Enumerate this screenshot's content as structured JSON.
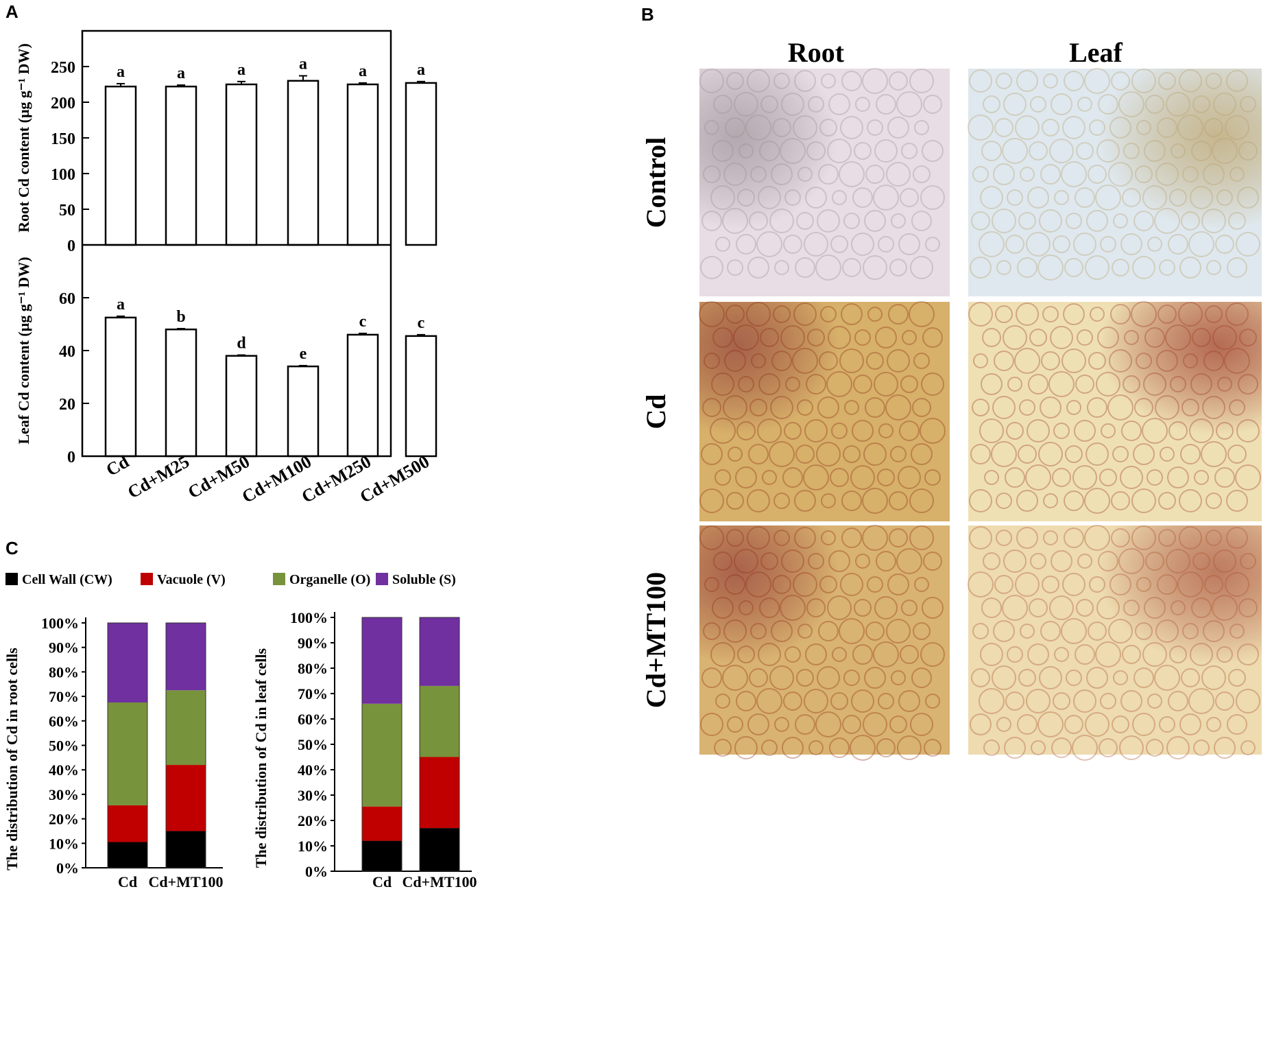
{
  "panels": {
    "A": "A",
    "B": "B",
    "C": "C"
  },
  "chart_data": [
    {
      "id": "root-cd",
      "type": "bar",
      "categories": [
        "Cd",
        "Cd+M25",
        "Cd+M50",
        "Cd+M100",
        "Cd+M250",
        "Cd+M500"
      ],
      "values": [
        222,
        222,
        225,
        230,
        225,
        227
      ],
      "errors": [
        4,
        2,
        4,
        7,
        2,
        2
      ],
      "letters": [
        "a",
        "a",
        "a",
        "a",
        "a",
        "a"
      ],
      "ylabel": "Root Cd content (μg g⁻¹ DW)",
      "ylim": [
        0,
        300
      ],
      "yticks": [
        "0",
        "50",
        "100",
        "150",
        "200",
        "250"
      ]
    },
    {
      "id": "leaf-cd",
      "type": "bar",
      "categories": [
        "Cd",
        "Cd+M25",
        "Cd+M50",
        "Cd+M100",
        "Cd+M250",
        "Cd+M500"
      ],
      "values": [
        52.5,
        48,
        38,
        34,
        46,
        45.5
      ],
      "errors": [
        0.5,
        0.3,
        0.3,
        0.3,
        0.5,
        0.5
      ],
      "letters": [
        "a",
        "b",
        "d",
        "e",
        "c",
        "c"
      ],
      "ylabel": "Leaf Cd content (μg g⁻¹ DW)",
      "ylim": [
        0,
        80
      ],
      "yticks": [
        "0",
        "20",
        "40",
        "60"
      ]
    },
    {
      "id": "root-dist",
      "type": "bar",
      "stacked": true,
      "categories": [
        "Cd",
        "Cd+MT100"
      ],
      "series": [
        {
          "name": "Cell Wall  (CW)",
          "color": "#000000",
          "values": [
            10.5,
            15
          ]
        },
        {
          "name": "Vacuole (V)",
          "color": "#c00000",
          "values": [
            15,
            27
          ]
        },
        {
          "name": "Organelle (O)",
          "color": "#77933c",
          "values": [
            42,
            30.5
          ]
        },
        {
          "name": "Soluble (S)",
          "color": "#7030a0",
          "values": [
            32.5,
            27.5
          ]
        }
      ],
      "ylabel": "The distribution of Cd in root cells",
      "ylim": [
        0,
        100
      ],
      "yticks": [
        "0%",
        "10%",
        "20%",
        "30%",
        "40%",
        "50%",
        "60%",
        "70%",
        "80%",
        "90%",
        "100%"
      ]
    },
    {
      "id": "leaf-dist",
      "type": "bar",
      "stacked": true,
      "categories": [
        "Cd",
        "Cd+MT100"
      ],
      "series": [
        {
          "name": "Cell Wall  (CW)",
          "color": "#000000",
          "values": [
            12,
            17
          ]
        },
        {
          "name": "Vacuole (V)",
          "color": "#c00000",
          "values": [
            13.5,
            28
          ]
        },
        {
          "name": "Organelle (O)",
          "color": "#77933c",
          "values": [
            40.5,
            28
          ]
        },
        {
          "name": "Soluble (S)",
          "color": "#7030a0",
          "values": [
            34,
            27
          ]
        }
      ],
      "ylabel": "The distribution of Cd in leaf cells",
      "ylim": [
        0,
        100
      ],
      "yticks": [
        "0%",
        "10%",
        "20%",
        "30%",
        "40%",
        "50%",
        "60%",
        "70%",
        "80%",
        "90%",
        "100%"
      ]
    }
  ],
  "legend": [
    {
      "name": "Cell Wall  (CW)",
      "color": "#000000"
    },
    {
      "name": "Vacuole (V)",
      "color": "#c00000"
    },
    {
      "name": "Organelle (O)",
      "color": "#77933c"
    },
    {
      "name": "Soluble (S)",
      "color": "#7030a0"
    }
  ],
  "micrographs": {
    "columns": [
      "Root",
      "Leaf"
    ],
    "rows": [
      "Control",
      "Cd",
      "Cd+MT100"
    ],
    "tints": {
      "Control-Root": [
        "#e8dde4",
        "#9a8c94"
      ],
      "Control-Leaf": [
        "#dfe8ee",
        "#b49f6a"
      ],
      "Cd-Root": [
        "#d7b06a",
        "#8a2f10"
      ],
      "Cd-Leaf": [
        "#efe0b4",
        "#9c3a1c"
      ],
      "Cd+MT100-Root": [
        "#d9b371",
        "#8e2f12"
      ],
      "Cd+MT100-Leaf": [
        "#eedbb0",
        "#a8502c"
      ]
    }
  }
}
